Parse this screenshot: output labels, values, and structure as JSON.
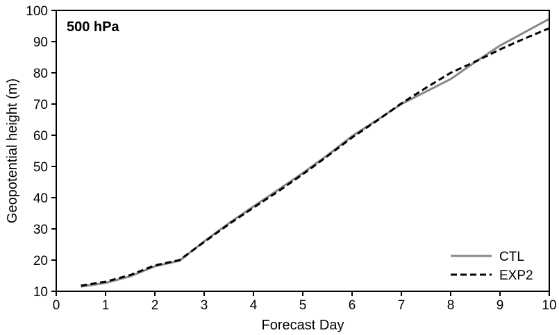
{
  "chart_data": {
    "type": "line",
    "title": "500 hPa",
    "xlabel": "Forecast Day",
    "ylabel": "Geopotential height (m)",
    "xlim": [
      0,
      10
    ],
    "ylim": [
      10,
      100
    ],
    "xticks": [
      0,
      1,
      2,
      3,
      4,
      5,
      6,
      7,
      8,
      9,
      10
    ],
    "yticks": [
      10,
      20,
      30,
      40,
      50,
      60,
      70,
      80,
      90,
      100
    ],
    "grid": false,
    "legend_position": "bottom-right",
    "series": [
      {
        "name": "CTL",
        "color": "#888888",
        "dash": "solid",
        "x": [
          0.5,
          1,
          1.5,
          2,
          2.5,
          3,
          3.5,
          4,
          4.5,
          5,
          5.5,
          6,
          6.5,
          7,
          7.5,
          8,
          8.5,
          9,
          9.5,
          10
        ],
        "y": [
          11.5,
          12.7,
          14.8,
          18.0,
          19.8,
          26.0,
          31.8,
          37.2,
          42.5,
          47.9,
          53.6,
          59.7,
          64.8,
          70.0,
          74.0,
          78.0,
          83.5,
          88.7,
          93.0,
          97.3
        ]
      },
      {
        "name": "EXP2",
        "color": "#000000",
        "dash": "dashed",
        "x": [
          0.5,
          1,
          1.5,
          2,
          2.5,
          3,
          3.5,
          4,
          4.5,
          5,
          5.5,
          6,
          6.5,
          7,
          7.5,
          8,
          8.5,
          9,
          9.5,
          10
        ],
        "y": [
          11.8,
          13.1,
          15.2,
          18.3,
          20.0,
          25.8,
          31.5,
          36.8,
          42.0,
          47.5,
          53.3,
          59.3,
          64.6,
          70.2,
          75.2,
          80.0,
          83.6,
          87.5,
          91.0,
          94.3
        ]
      }
    ]
  }
}
